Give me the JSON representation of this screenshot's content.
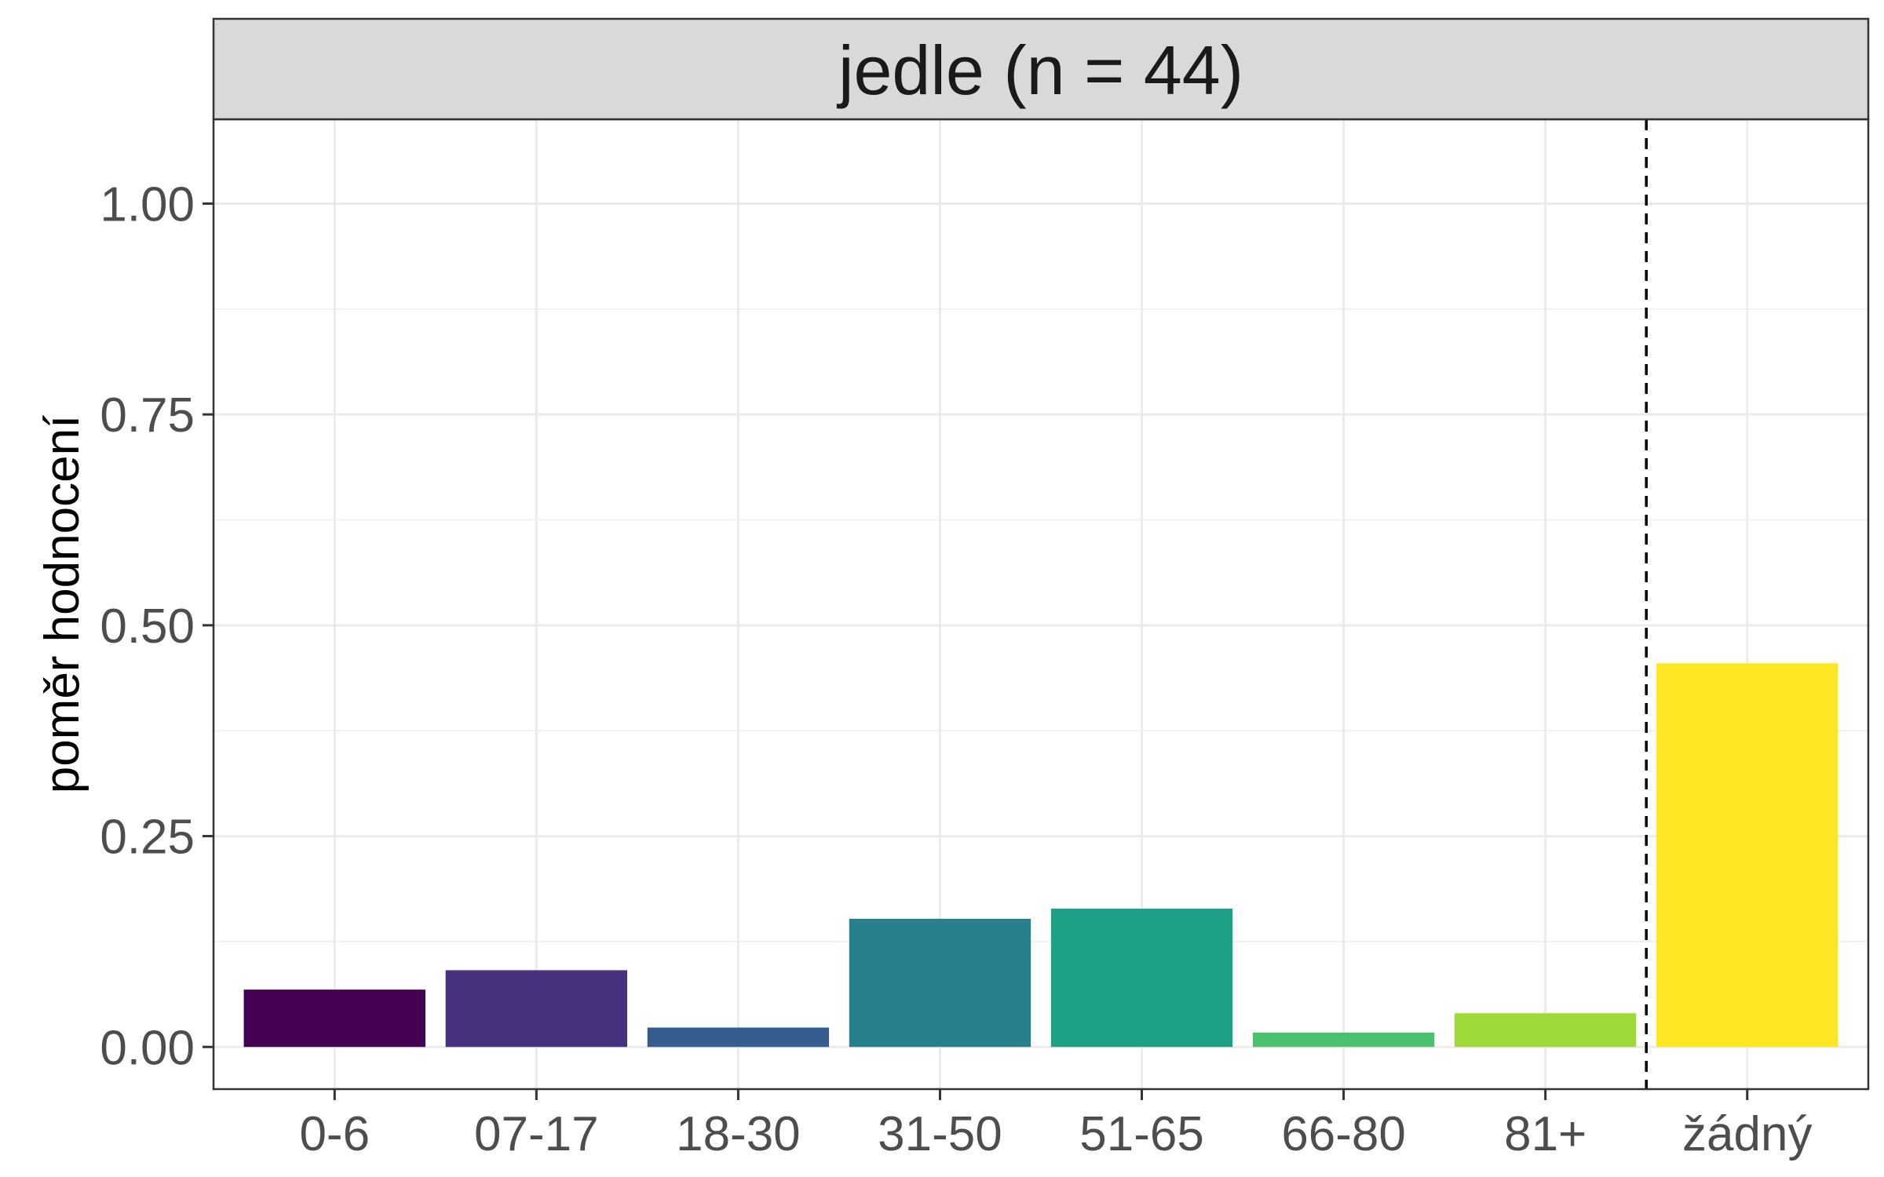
{
  "chart_data": {
    "type": "bar",
    "panel_title": "jedle (n = 44)",
    "ylabel": "poměr hodnocení",
    "xlabel": "",
    "categories": [
      "0-6",
      "07-17",
      "18-30",
      "31-50",
      "51-65",
      "66-80",
      "81+",
      "žádný"
    ],
    "values": [
      0.068,
      0.091,
      0.023,
      0.152,
      0.164,
      0.017,
      0.04,
      0.455
    ],
    "colors": [
      "#440154",
      "#46327e",
      "#365c8d",
      "#277f8e",
      "#1fa187",
      "#4ac16d",
      "#a0da39",
      "#fde725"
    ],
    "ylim": [
      -0.05,
      1.1
    ],
    "y_ticks": [
      0,
      0.25,
      0.5,
      0.75,
      1
    ],
    "y_tick_labels": [
      "0.00",
      "0.25",
      "0.50",
      "0.75",
      "1.00"
    ],
    "separator_after_category": "81+",
    "separator_style": "dashed",
    "grid": true,
    "legend": "none"
  }
}
